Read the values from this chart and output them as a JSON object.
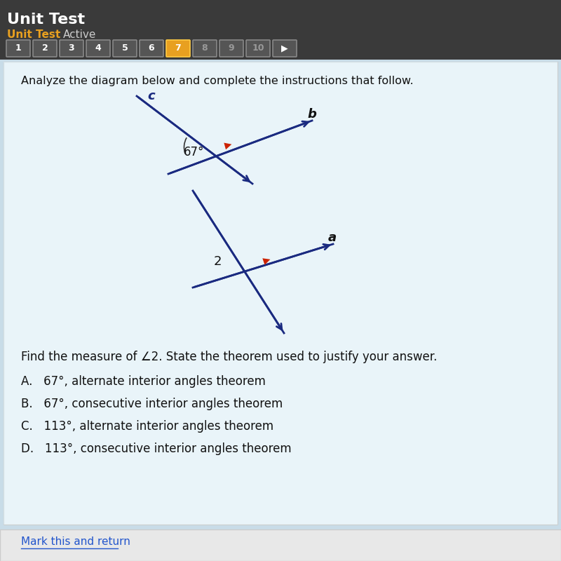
{
  "title": "Unit Test",
  "subtitle": "Unit Test    Active",
  "header_bg": "#3a3a3a",
  "header_text_color": "#ffffff",
  "unit_test_color": "#e8a020",
  "active_color": "#cccccc",
  "nav_buttons": [
    "1",
    "2",
    "3",
    "4",
    "5",
    "6",
    "7",
    "8",
    "9",
    "10"
  ],
  "active_button": "7",
  "active_btn_bg": "#e8a020",
  "inactive_btn_bg": "#555555",
  "inactive_btn_border": "#888888",
  "body_bg_top": "#d8eef8",
  "body_bg_bottom": "#e8f8f0",
  "instruction": "Analyze the diagram below and complete the instructions that follow.",
  "angle_label": "67°",
  "angle_num": "2",
  "line_color": "#1a2a80",
  "arrow_color": "#cc2200",
  "question_text": "Find the measure of ∠2. State the theorem used to justify your answer.",
  "choices": [
    "A.   67°, alternate interior angles theorem",
    "B.   67°, consecutive interior angles theorem",
    "C.   113°, alternate interior angles theorem",
    "D.   113°, consecutive interior angles theorem"
  ],
  "footer_link": "Mark this and return",
  "footer_link_color": "#2255cc",
  "footer_bg": "#f0f0f0",
  "choice_text_color": "#111111",
  "question_text_color": "#111111",
  "instruction_text_color": "#111111"
}
